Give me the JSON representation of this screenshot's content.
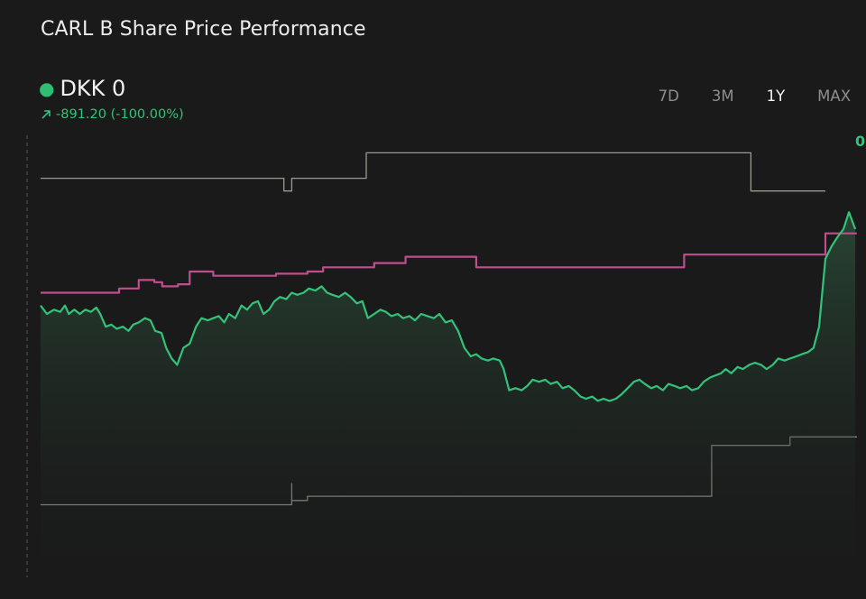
{
  "title": "CARL B Share Price Performance",
  "price": {
    "label": "DKK 0",
    "change": "-891.20 (-100.00%)"
  },
  "range_tabs": [
    {
      "label": "7D",
      "active": false
    },
    {
      "label": "3M",
      "active": false
    },
    {
      "label": "1Y",
      "active": true
    },
    {
      "label": "MAX",
      "active": false
    }
  ],
  "right_value": "0",
  "colors": {
    "background": "#1a1a1a",
    "price_line": "#33c27a",
    "price_fill": "#2a4a37",
    "high_line": "#9a9a92",
    "low_line": "#9a9a92",
    "pink_line": "#c04e8e",
    "active_tab": "#f2f2f2",
    "inactive_tab": "#8e8e8e"
  },
  "chart_data": {
    "type": "line",
    "x_range": [
      0,
      100
    ],
    "y_range": [
      0,
      100
    ],
    "series": [
      {
        "role": "price",
        "style": "line-with-area",
        "points": [
          [
            0,
            62
          ],
          [
            0.8,
            60
          ],
          [
            1.7,
            61
          ],
          [
            2.5,
            60.5
          ],
          [
            3.1,
            62
          ],
          [
            3.6,
            60
          ],
          [
            4.3,
            61
          ],
          [
            5,
            60
          ],
          [
            5.7,
            61
          ],
          [
            6.4,
            60.5
          ],
          [
            7.1,
            61.5
          ],
          [
            7.6,
            60
          ],
          [
            8.3,
            57
          ],
          [
            9,
            57.5
          ],
          [
            9.7,
            56.5
          ],
          [
            10.5,
            57
          ],
          [
            11.2,
            56
          ],
          [
            11.8,
            57.5
          ],
          [
            12.5,
            58
          ],
          [
            13.3,
            59
          ],
          [
            14,
            58.5
          ],
          [
            14.6,
            56
          ],
          [
            15.4,
            55.5
          ],
          [
            16,
            52
          ],
          [
            16.7,
            49.5
          ],
          [
            17.4,
            48
          ],
          [
            18.2,
            52
          ],
          [
            19,
            53
          ],
          [
            19.8,
            57
          ],
          [
            20.5,
            59
          ],
          [
            21.3,
            58.5
          ],
          [
            22,
            59
          ],
          [
            22.7,
            59.5
          ],
          [
            23.4,
            58
          ],
          [
            24,
            60
          ],
          [
            24.8,
            59
          ],
          [
            25.6,
            62
          ],
          [
            26.3,
            61
          ],
          [
            27,
            62.5
          ],
          [
            27.7,
            63
          ],
          [
            28.4,
            60
          ],
          [
            29.1,
            61
          ],
          [
            29.8,
            63
          ],
          [
            30.5,
            64
          ],
          [
            31.3,
            63.5
          ],
          [
            32,
            65
          ],
          [
            32.7,
            64.5
          ],
          [
            33.5,
            65
          ],
          [
            34.2,
            66
          ],
          [
            35,
            65.5
          ],
          [
            35.8,
            66.5
          ],
          [
            36.5,
            65
          ],
          [
            37.2,
            64.5
          ],
          [
            38,
            64
          ],
          [
            38.8,
            65
          ],
          [
            39.5,
            64
          ],
          [
            40.3,
            62.5
          ],
          [
            41,
            63
          ],
          [
            41.7,
            59
          ],
          [
            42.5,
            60
          ],
          [
            43.3,
            61
          ],
          [
            44,
            60.5
          ],
          [
            44.7,
            59.5
          ],
          [
            45.5,
            60
          ],
          [
            46.2,
            59
          ],
          [
            47,
            59.5
          ],
          [
            47.7,
            58.5
          ],
          [
            48.5,
            60
          ],
          [
            49.3,
            59.5
          ],
          [
            50.1,
            59
          ],
          [
            50.8,
            60
          ],
          [
            51.6,
            58
          ],
          [
            52.4,
            58.5
          ],
          [
            53.2,
            56
          ],
          [
            54,
            52
          ],
          [
            54.8,
            50
          ],
          [
            55.5,
            50.5
          ],
          [
            56.2,
            49.5
          ],
          [
            57,
            49
          ],
          [
            57.7,
            49.5
          ],
          [
            58.5,
            49
          ],
          [
            59,
            47
          ],
          [
            59.7,
            42
          ],
          [
            60.5,
            42.5
          ],
          [
            61.3,
            42
          ],
          [
            62,
            43
          ],
          [
            62.7,
            44.5
          ],
          [
            63.5,
            44
          ],
          [
            64.3,
            44.5
          ],
          [
            65,
            43.5
          ],
          [
            65.8,
            44
          ],
          [
            66.5,
            42.5
          ],
          [
            67.3,
            43
          ],
          [
            68,
            42
          ],
          [
            68.8,
            40.5
          ],
          [
            69.5,
            40
          ],
          [
            70.3,
            40.5
          ],
          [
            71,
            39.5
          ],
          [
            71.7,
            40
          ],
          [
            72.5,
            39.5
          ],
          [
            73.3,
            40
          ],
          [
            74,
            41
          ],
          [
            74.8,
            42.5
          ],
          [
            75.6,
            44
          ],
          [
            76.3,
            44.5
          ],
          [
            77,
            43.5
          ],
          [
            77.8,
            42.5
          ],
          [
            78.5,
            43
          ],
          [
            79.3,
            42
          ],
          [
            80,
            43.5
          ],
          [
            80.8,
            43
          ],
          [
            81.5,
            42.5
          ],
          [
            82.3,
            43
          ],
          [
            83,
            42
          ],
          [
            83.8,
            42.5
          ],
          [
            84.5,
            44
          ],
          [
            85.3,
            45
          ],
          [
            86,
            45.5
          ],
          [
            86.7,
            46
          ],
          [
            87.3,
            47
          ],
          [
            88,
            46
          ],
          [
            88.8,
            47.5
          ],
          [
            89.5,
            47
          ],
          [
            90.3,
            48
          ],
          [
            91,
            48.5
          ],
          [
            91.8,
            48
          ],
          [
            92.5,
            47
          ],
          [
            93.3,
            48
          ],
          [
            94,
            49.5
          ],
          [
            94.8,
            49
          ],
          [
            95.5,
            49.5
          ],
          [
            96.3,
            50
          ],
          [
            97,
            50.5
          ],
          [
            97.8,
            51
          ],
          [
            98.5,
            52
          ],
          [
            99.2,
            57
          ],
          [
            100,
            73
          ],
          [
            100.8,
            76
          ],
          [
            101.5,
            78
          ],
          [
            102.3,
            80
          ],
          [
            103,
            84
          ],
          [
            103.8,
            80
          ]
        ]
      },
      {
        "role": "upper-band",
        "style": "step",
        "points": [
          [
            0,
            92
          ],
          [
            31,
            92
          ],
          [
            31,
            89
          ],
          [
            32,
            89
          ],
          [
            32,
            92
          ],
          [
            41.5,
            92
          ],
          [
            41.5,
            98
          ],
          [
            90.5,
            98
          ],
          [
            90.5,
            89
          ],
          [
            100,
            89
          ]
        ]
      },
      {
        "role": "pink-line",
        "style": "step",
        "points": [
          [
            0,
            65
          ],
          [
            10,
            65
          ],
          [
            10,
            66
          ],
          [
            12.5,
            66
          ],
          [
            12.5,
            68
          ],
          [
            14.5,
            68
          ],
          [
            14.5,
            67.5
          ],
          [
            15.5,
            67.5
          ],
          [
            15.5,
            66.5
          ],
          [
            17.5,
            66.5
          ],
          [
            17.5,
            67
          ],
          [
            19,
            67
          ],
          [
            19,
            70
          ],
          [
            22,
            70
          ],
          [
            22,
            69
          ],
          [
            30,
            69
          ],
          [
            30,
            69.5
          ],
          [
            34,
            69.5
          ],
          [
            34,
            70
          ],
          [
            36,
            70
          ],
          [
            36,
            71
          ],
          [
            42.5,
            71
          ],
          [
            42.5,
            72
          ],
          [
            46.5,
            72
          ],
          [
            46.5,
            73.5
          ],
          [
            55.5,
            73.5
          ],
          [
            55.5,
            71
          ],
          [
            82,
            71
          ],
          [
            82,
            74
          ],
          [
            100,
            74
          ],
          [
            100,
            79
          ],
          [
            104,
            79
          ]
        ]
      },
      {
        "role": "lower-band",
        "style": "step",
        "points": [
          [
            0,
            15
          ],
          [
            32,
            15
          ],
          [
            32,
            20
          ],
          [
            32,
            16
          ],
          [
            34,
            16
          ],
          [
            34,
            17
          ],
          [
            85.5,
            17
          ],
          [
            85.5,
            29
          ],
          [
            95.5,
            29
          ],
          [
            95.5,
            31
          ],
          [
            104,
            31
          ]
        ]
      }
    ]
  }
}
